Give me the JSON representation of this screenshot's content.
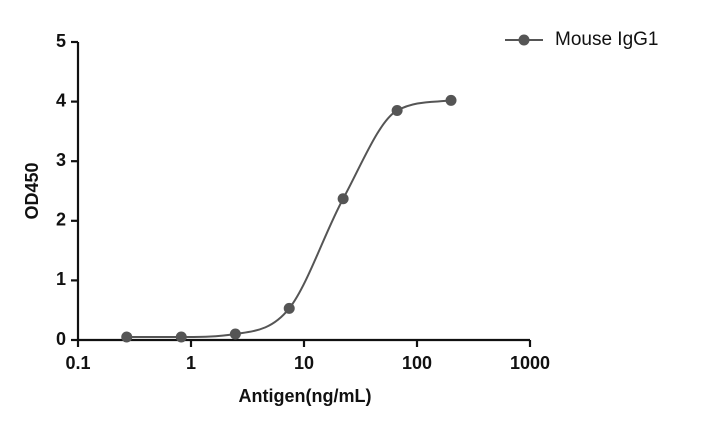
{
  "chart_data": {
    "type": "line",
    "smooth": true,
    "xlabel": "Antigen(ng/mL)",
    "ylabel": "OD450",
    "xscale": "log",
    "x": [
      0.27,
      0.82,
      2.47,
      7.4,
      22.2,
      66.7,
      200
    ],
    "series": [
      {
        "name": "Mouse IgG1",
        "color": "#555555",
        "values": [
          0.05,
          0.05,
          0.1,
          0.53,
          2.37,
          3.85,
          4.02
        ]
      }
    ],
    "xlim": [
      0.1,
      1000
    ],
    "xticks": [
      0.1,
      1,
      10,
      100,
      1000
    ],
    "ylim": [
      0,
      5
    ],
    "yticks": [
      0,
      1,
      2,
      3,
      4,
      5
    ],
    "legend": "top-right"
  }
}
